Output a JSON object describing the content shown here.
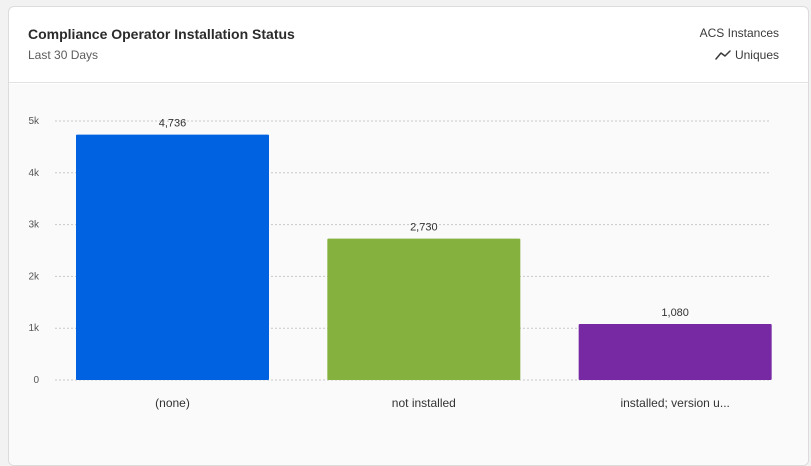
{
  "card": {
    "title": "Compliance Operator Installation Status",
    "subtitle": "Last 30 Days",
    "metric_label": "ACS Instances",
    "uniques_label": "Uniques",
    "uniques_icon": "trend-line-icon"
  },
  "chart_data": {
    "type": "bar",
    "categories": [
      "(none)",
      "not installed",
      "installed; version u..."
    ],
    "values": [
      4736,
      2730,
      1080
    ],
    "value_labels": [
      "4,736",
      "2,730",
      "1,080"
    ],
    "colors": [
      "#0062e0",
      "#85b13e",
      "#7629a2"
    ],
    "yticks": [
      0,
      1000,
      2000,
      3000,
      4000,
      5000
    ],
    "ytick_labels": [
      "0",
      "1k",
      "2k",
      "3k",
      "4k",
      "5k"
    ],
    "ylim": [
      0,
      5000
    ],
    "grid": true
  }
}
